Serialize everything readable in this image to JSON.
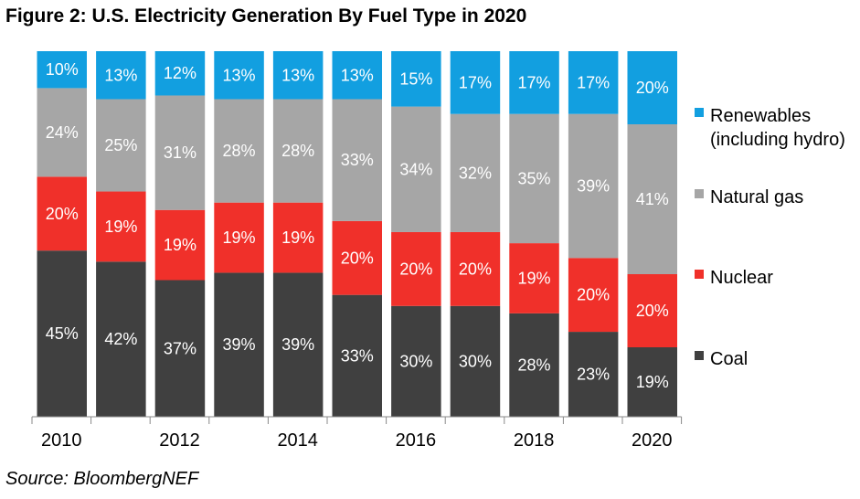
{
  "title": "Figure 2: U.S. Electricity Generation By Fuel Type in 2020",
  "source": "Source: BloombergNEF",
  "chart_data": {
    "type": "bar",
    "stacked": true,
    "percent_stacked": true,
    "categories": [
      "2010",
      "2011",
      "2012",
      "2013",
      "2014",
      "2015",
      "2016",
      "2017",
      "2018",
      "2019",
      "2020"
    ],
    "tick_labels": [
      "2010",
      "",
      "2012",
      "",
      "2014",
      "",
      "2016",
      "",
      "2018",
      "",
      "2020"
    ],
    "series": [
      {
        "name": "Coal",
        "color": "#404040",
        "label_color": "#ffffff",
        "values": [
          45,
          42,
          37,
          39,
          39,
          33,
          30,
          30,
          28,
          23,
          19
        ]
      },
      {
        "name": "Nuclear",
        "color": "#f0302a",
        "label_color": "#ffffff",
        "values": [
          20,
          19,
          19,
          19,
          19,
          20,
          20,
          20,
          19,
          20,
          20
        ]
      },
      {
        "name": "Natural gas",
        "color": "#a6a6a6",
        "label_color": "#ffffff",
        "values": [
          24,
          25,
          31,
          28,
          28,
          33,
          34,
          32,
          35,
          39,
          41
        ]
      },
      {
        "name": "Renewables (including hydro)",
        "color": "#129fe0",
        "label_color": "#ffffff",
        "values": [
          10,
          13,
          12,
          13,
          13,
          13,
          15,
          17,
          17,
          17,
          20
        ]
      }
    ],
    "legend": {
      "placement": "right",
      "items": [
        {
          "lines": [
            "Renewables",
            "(including hydro)"
          ],
          "color": "#129fe0"
        },
        {
          "lines": [
            "Natural gas"
          ],
          "color": "#a6a6a6"
        },
        {
          "lines": [
            "Nuclear"
          ],
          "color": "#f0302a"
        },
        {
          "lines": [
            "Coal"
          ],
          "color": "#404040"
        }
      ]
    },
    "value_suffix": "%",
    "ylim": [
      0,
      100
    ],
    "grid": false
  }
}
